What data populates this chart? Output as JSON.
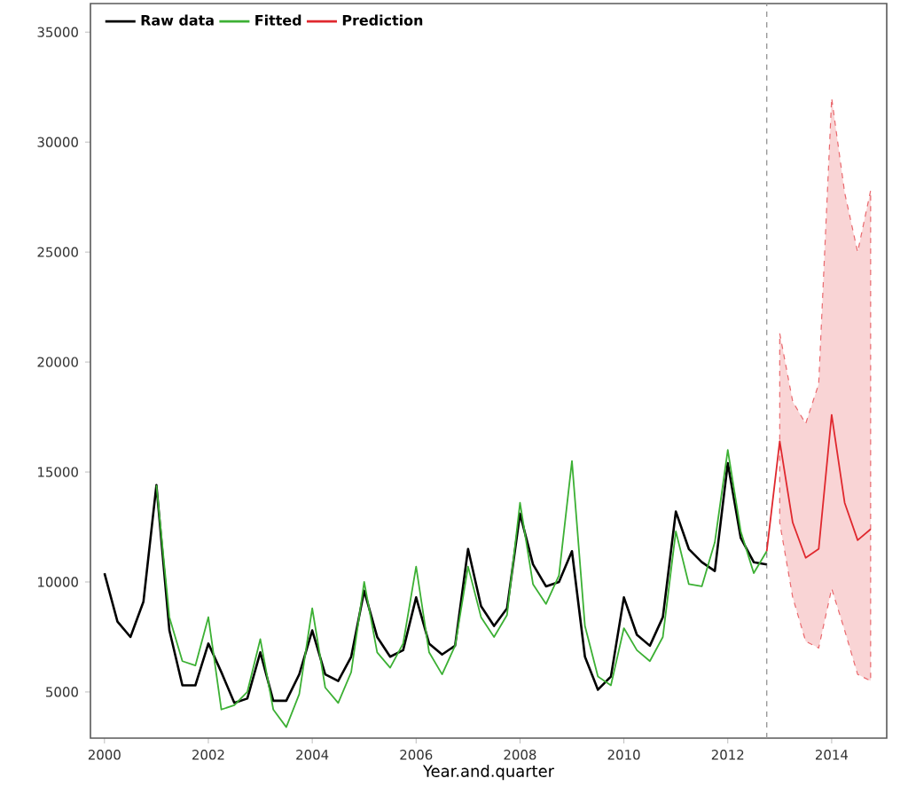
{
  "chart_data": {
    "type": "line",
    "xlabel": "Year.and.quarter",
    "xlim": [
      1999.73,
      2015.06
    ],
    "ylim": [
      2900,
      36300
    ],
    "xticks": [
      2000,
      2002,
      2004,
      2006,
      2008,
      2010,
      2012,
      2014
    ],
    "yticks": [
      5000,
      10000,
      15000,
      20000,
      25000,
      30000,
      35000
    ],
    "legend": "top left",
    "grid": false,
    "marker": "none",
    "line_style": "solid",
    "ref_lines": [
      {
        "axis": "x",
        "value": 2012.75,
        "color": "#999999",
        "line_style": "dashed"
      }
    ],
    "series": [
      {
        "name": "Raw data",
        "color": "#000000",
        "x": [
          2000,
          2000.25,
          2000.5,
          2000.75,
          2001,
          2001.25,
          2001.5,
          2001.75,
          2002,
          2002.25,
          2002.5,
          2002.75,
          2003,
          2003.25,
          2003.5,
          2003.75,
          2004,
          2004.25,
          2004.5,
          2004.75,
          2005,
          2005.25,
          2005.5,
          2005.75,
          2006,
          2006.25,
          2006.5,
          2006.75,
          2007,
          2007.25,
          2007.5,
          2007.75,
          2008,
          2008.25,
          2008.5,
          2008.75,
          2009,
          2009.25,
          2009.5,
          2009.75,
          2010,
          2010.25,
          2010.5,
          2010.75,
          2011,
          2011.25,
          2011.5,
          2011.75,
          2012,
          2012.25,
          2012.5,
          2012.75
        ],
        "values": [
          10400,
          8200,
          7500,
          9100,
          14400,
          7800,
          5300,
          5300,
          7200,
          5900,
          4500,
          4700,
          6800,
          4600,
          4600,
          5800,
          7800,
          5800,
          5500,
          6600,
          9600,
          7500,
          6600,
          6900,
          9300,
          7200,
          6700,
          7100,
          11500,
          8900,
          8000,
          8800,
          13100,
          10800,
          9800,
          10000,
          11400,
          6600,
          5100,
          5700,
          9300,
          7600,
          7100,
          8400,
          13200,
          11500,
          10900,
          10500,
          15400,
          12000,
          10900,
          10800
        ]
      },
      {
        "name": "Fitted",
        "color": "#3cb034",
        "x": [
          2001,
          2001.25,
          2001.5,
          2001.75,
          2002,
          2002.25,
          2002.5,
          2002.75,
          2003,
          2003.25,
          2003.5,
          2003.75,
          2004,
          2004.25,
          2004.5,
          2004.75,
          2005,
          2005.25,
          2005.5,
          2005.75,
          2006,
          2006.25,
          2006.5,
          2006.75,
          2007,
          2007.25,
          2007.5,
          2007.75,
          2008,
          2008.25,
          2008.5,
          2008.75,
          2009,
          2009.25,
          2009.5,
          2009.75,
          2010,
          2010.25,
          2010.5,
          2010.75,
          2011,
          2011.25,
          2011.5,
          2011.75,
          2012,
          2012.25,
          2012.5,
          2012.75
        ],
        "values": [
          14400,
          8400,
          6400,
          6200,
          8400,
          4200,
          4400,
          5000,
          7400,
          4200,
          3400,
          4900,
          8800,
          5200,
          4500,
          5900,
          10000,
          6800,
          6100,
          7200,
          10700,
          6800,
          5800,
          7100,
          10700,
          8400,
          7500,
          8500,
          13600,
          9900,
          9000,
          10300,
          15500,
          8000,
          5700,
          5300,
          7900,
          6900,
          6400,
          7500,
          12300,
          9900,
          9800,
          11800,
          16000,
          12300,
          10400,
          11400
        ]
      },
      {
        "name": "Prediction",
        "color": "#e0282e",
        "x": [
          2012.75,
          2013,
          2013.25,
          2013.5,
          2013.75,
          2014,
          2014.25,
          2014.5,
          2014.75
        ],
        "values": [
          11400,
          16400,
          12700,
          11100,
          11500,
          17600,
          13600,
          11900,
          12400
        ],
        "lower": [
          null,
          12700,
          9300,
          7300,
          7000,
          9700,
          7800,
          5800,
          5500
        ],
        "upper": [
          null,
          21300,
          18200,
          17200,
          19000,
          32000,
          27700,
          25000,
          27800
        ]
      }
    ]
  }
}
